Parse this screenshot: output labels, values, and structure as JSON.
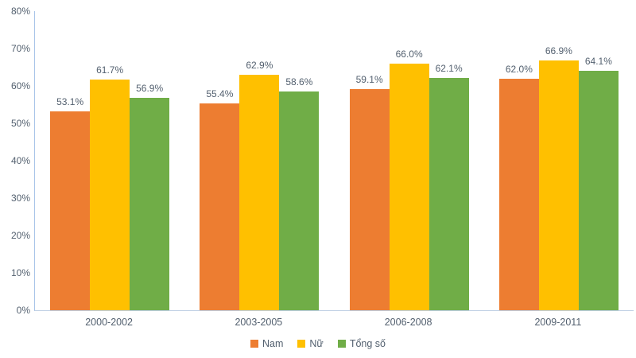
{
  "chart_data": {
    "type": "bar",
    "title": "",
    "categories": [
      "2000-2002",
      "2003-2005",
      "2006-2008",
      "2009-2011"
    ],
    "series": [
      {
        "name": "Nam",
        "color": "#ED7D31",
        "values": [
          53.1,
          55.4,
          59.1,
          62.0
        ]
      },
      {
        "name": "Nữ",
        "color": "#FFC000",
        "values": [
          61.7,
          62.9,
          66.0,
          66.9
        ]
      },
      {
        "name": "Tổng số",
        "color": "#70AD47",
        "values": [
          56.9,
          58.6,
          62.1,
          64.1
        ]
      }
    ],
    "xlabel": "",
    "ylabel": "",
    "ylim": [
      0,
      80
    ],
    "yticks": [
      "0%",
      "10%",
      "20%",
      "30%",
      "40%",
      "50%",
      "60%",
      "70%",
      "80%"
    ],
    "data_label_suffix": "%",
    "data_label_decimals": 1,
    "grid": false,
    "legend_position": "bottom",
    "axis_line_color": "#A9C5E8",
    "text_color": "#53606F",
    "background_color": "#FFFFFF"
  }
}
